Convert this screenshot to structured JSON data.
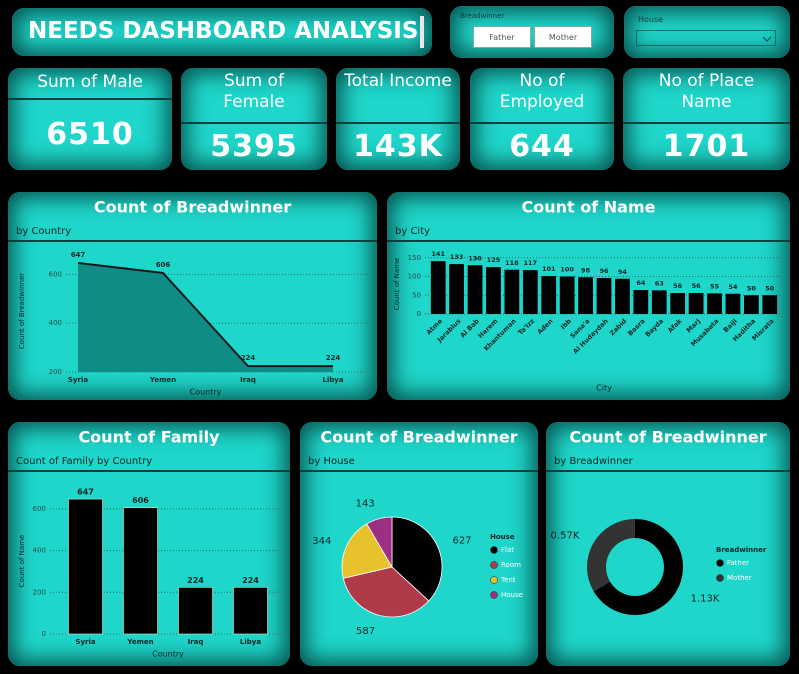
{
  "header": {
    "title": "NEEDS DASHBOARD ANALYSIS"
  },
  "filters": [
    {
      "label": "Breadwinner",
      "options": [
        "Father",
        "Mother"
      ]
    },
    {
      "label": "House"
    }
  ],
  "cards": [
    {
      "title": "Sum of Male",
      "value": 6510
    },
    {
      "title": "Sum of Female",
      "value": 5395
    },
    {
      "title": "Total Income",
      "value": 143000,
      "value_label": "143K"
    },
    {
      "title": "No of Employed",
      "value": 644
    },
    {
      "title": "No of Place Name",
      "value": 1701
    }
  ],
  "chart_data": [
    {
      "type": "area",
      "title": "Count of Breadwinner",
      "subtitle": "by Country",
      "x_label": "Country",
      "y_label": "Count of Breadwinner",
      "categories": [
        "Syria",
        "Yemen",
        "Iraq",
        "Libya"
      ],
      "values": [
        647,
        606,
        224,
        224
      ],
      "color": "#0e8c85",
      "ylim": [
        200,
        700
      ],
      "yticks": [
        200,
        400,
        600
      ],
      "grid": true
    },
    {
      "type": "bar",
      "title": "Count of Name",
      "subtitle": "by City",
      "x_label": "City",
      "y_label": "Count of Name",
      "categories": [
        "Atme",
        "Jarablus",
        "Al Bab",
        "Harem",
        "Khantuman",
        "Ta'izz",
        "Aden",
        "Ibb",
        "Sana'a",
        "Al Hudaydah",
        "Zabid",
        "Basra",
        "Bayda",
        "Afak",
        "Marj",
        "Musabata",
        "Baiji",
        "Haditha",
        "Misrata"
      ],
      "values": [
        141,
        133,
        130,
        125,
        118,
        117,
        101,
        100,
        98,
        96,
        94,
        64,
        63,
        56,
        56,
        55,
        54,
        50,
        50
      ],
      "color": "#000000",
      "ylim": [
        0,
        160
      ],
      "yticks": [
        0,
        50,
        100,
        150
      ],
      "grid": true
    },
    {
      "type": "bar",
      "title": "Count of Family",
      "subtitle": "Count of Family by Country",
      "x_label": "Country",
      "y_label": "Count of Name",
      "categories": [
        "Syria",
        "Yemen",
        "Iraq",
        "Libya"
      ],
      "values": [
        647,
        606,
        224,
        224
      ],
      "color": "#000000",
      "ylim": [
        0,
        700
      ],
      "yticks": [
        0,
        200,
        400,
        600
      ],
      "grid": true
    },
    {
      "type": "pie",
      "title": "Count of Breadwinner",
      "subtitle": "by House",
      "legend_title": "House",
      "legend": "right",
      "categories": [
        "Flat",
        "Room",
        "Tent",
        "House"
      ],
      "values": [
        627,
        587,
        344,
        143
      ],
      "colors": [
        "#000000",
        "#b13a48",
        "#e8c22c",
        "#9c2f82"
      ]
    },
    {
      "type": "donut",
      "title": "Count of Breadwinner",
      "subtitle": "by Breadwinner",
      "legend_title": "Breadwinner",
      "legend": "right",
      "categories": [
        "Father",
        "Mother"
      ],
      "values": [
        1130,
        570
      ],
      "value_labels": [
        "1.13K",
        "0.57K"
      ],
      "colors": [
        "#000000",
        "#333333"
      ]
    }
  ]
}
